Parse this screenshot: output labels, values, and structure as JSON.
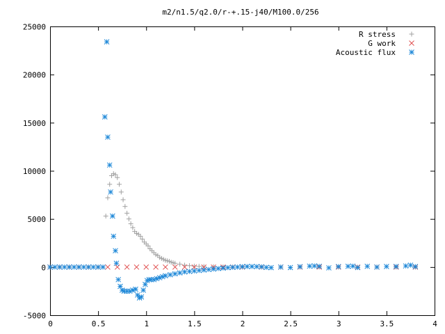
{
  "chart_data": {
    "type": "scatter",
    "title": "m2/n1.5/q2.0/r-+.15-j40/M100.0/256",
    "xlabel": "",
    "ylabel": "",
    "xlim": [
      0,
      4
    ],
    "ylim": [
      -5000,
      25000
    ],
    "xticks": [
      0,
      0.5,
      1,
      1.5,
      2,
      2.5,
      3,
      3.5,
      4
    ],
    "xtick_labels": [
      "0",
      "0.5",
      "1",
      "1.5",
      "2",
      "2.5",
      "3",
      "3.5",
      "4"
    ],
    "yticks": [
      -5000,
      0,
      5000,
      10000,
      15000,
      20000,
      25000
    ],
    "ytick_labels": [
      "-5000",
      "0",
      "5000",
      "10000",
      "15000",
      "20000",
      "25000"
    ],
    "grid": false,
    "legend_position": "top-right",
    "series": [
      {
        "name": "R stress",
        "marker": "plus",
        "color": "#a0a0a0",
        "x": [
          0.0,
          0.1,
          0.2,
          0.3,
          0.4,
          0.5,
          0.55,
          0.58,
          0.6,
          0.62,
          0.64,
          0.66,
          0.68,
          0.7,
          0.72,
          0.74,
          0.76,
          0.78,
          0.8,
          0.82,
          0.84,
          0.86,
          0.88,
          0.9,
          0.92,
          0.94,
          0.96,
          0.98,
          1.0,
          1.02,
          1.04,
          1.06,
          1.08,
          1.1,
          1.12,
          1.14,
          1.16,
          1.18,
          1.2,
          1.22,
          1.24,
          1.26,
          1.28,
          1.3,
          1.35,
          1.4,
          1.45,
          1.5,
          1.55,
          1.6,
          1.7,
          1.8,
          1.9,
          2.0,
          2.2,
          2.4,
          2.6,
          2.8,
          3.0,
          3.2,
          3.4,
          3.6,
          3.8
        ],
        "y": [
          0,
          0,
          0,
          0,
          0,
          0,
          0,
          5300,
          7200,
          8600,
          9500,
          9700,
          9600,
          9300,
          8600,
          7800,
          7000,
          6300,
          5600,
          5000,
          4500,
          4100,
          3700,
          3500,
          3400,
          3200,
          2900,
          2600,
          2400,
          2200,
          1900,
          1700,
          1500,
          1300,
          1200,
          1000,
          900,
          800,
          700,
          650,
          600,
          500,
          450,
          400,
          300,
          200,
          150,
          100,
          80,
          60,
          40,
          20,
          0,
          0,
          0,
          0,
          0,
          0,
          0,
          0,
          0,
          0,
          0
        ]
      },
      {
        "name": "G work",
        "marker": "cross",
        "color": "#e05050",
        "x": [
          0.0,
          0.1,
          0.2,
          0.3,
          0.4,
          0.5,
          0.6,
          0.7,
          0.8,
          0.9,
          1.0,
          1.1,
          1.2,
          1.3,
          1.4,
          1.5,
          1.6,
          1.7,
          1.8,
          1.9,
          2.0,
          2.2,
          2.4,
          2.6,
          2.8,
          3.0,
          3.2,
          3.4,
          3.6,
          3.8
        ],
        "y": [
          0,
          0,
          0,
          0,
          0,
          0,
          0,
          0,
          0,
          0,
          0,
          0,
          0,
          0,
          0,
          0,
          0,
          0,
          0,
          0,
          0,
          0,
          0,
          0,
          0,
          0,
          0,
          0,
          0,
          0
        ]
      },
      {
        "name": "Acoustic flux",
        "marker": "star",
        "color": "#1e88d8",
        "x": [
          0.0,
          0.05,
          0.1,
          0.15,
          0.2,
          0.25,
          0.3,
          0.35,
          0.4,
          0.45,
          0.5,
          0.55,
          0.57,
          0.59,
          0.6,
          0.62,
          0.63,
          0.65,
          0.66,
          0.68,
          0.69,
          0.71,
          0.73,
          0.75,
          0.77,
          0.8,
          0.83,
          0.86,
          0.89,
          0.91,
          0.93,
          0.95,
          0.97,
          0.99,
          1.01,
          1.03,
          1.05,
          1.08,
          1.11,
          1.14,
          1.17,
          1.2,
          1.25,
          1.3,
          1.35,
          1.4,
          1.45,
          1.5,
          1.55,
          1.6,
          1.65,
          1.7,
          1.75,
          1.8,
          1.85,
          1.9,
          1.95,
          2.0,
          2.05,
          2.1,
          2.15,
          2.2,
          2.25,
          2.3,
          2.4,
          2.5,
          2.6,
          2.7,
          2.75,
          2.8,
          2.9,
          3.0,
          3.1,
          3.15,
          3.2,
          3.3,
          3.4,
          3.5,
          3.6,
          3.7,
          3.75,
          3.8
        ],
        "y": [
          0,
          0,
          0,
          0,
          0,
          0,
          0,
          0,
          0,
          0,
          0,
          0,
          15600,
          23400,
          13500,
          10600,
          7800,
          5300,
          3200,
          1700,
          400,
          -1300,
          -2000,
          -2400,
          -2500,
          -2500,
          -2500,
          -2400,
          -2300,
          -2900,
          -3200,
          -3100,
          -2400,
          -1800,
          -1400,
          -1300,
          -1300,
          -1300,
          -1200,
          -1100,
          -1000,
          -900,
          -800,
          -700,
          -600,
          -500,
          -450,
          -400,
          -350,
          -300,
          -250,
          -200,
          -150,
          -100,
          -60,
          -20,
          0,
          40,
          60,
          60,
          50,
          30,
          -30,
          -60,
          0,
          -50,
          40,
          100,
          120,
          80,
          -80,
          50,
          80,
          100,
          -50,
          80,
          0,
          60,
          60,
          120,
          200,
          50
        ]
      }
    ]
  }
}
